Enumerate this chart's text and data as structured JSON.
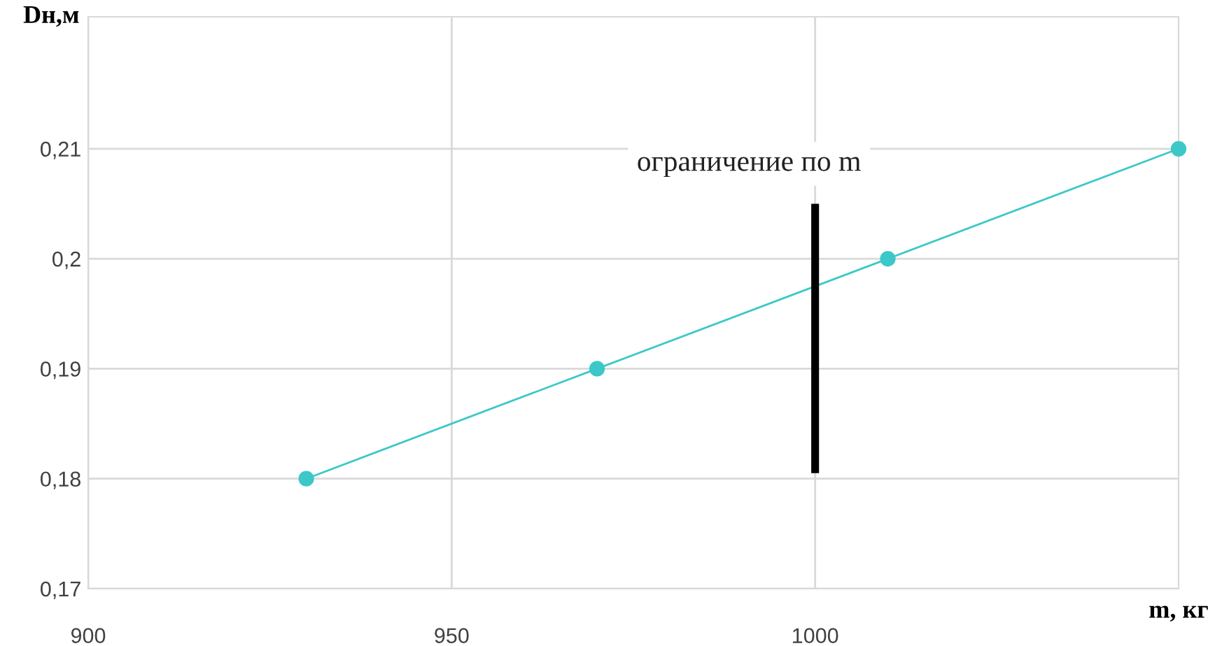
{
  "chart_data": {
    "type": "line",
    "xlabel": "m, кг",
    "ylabel": "Dн,м",
    "x": [
      930,
      970,
      1010,
      1050
    ],
    "series": [
      {
        "color": "#3cc8c8",
        "values": [
          0.18,
          0.19,
          0.2,
          0.21
        ],
        "marker": "circle"
      },
      {
        "type": "line",
        "color": "#000000",
        "x": [
          1000,
          1000
        ],
        "values": [
          0.1805,
          0.205
        ],
        "marker": "none"
      }
    ],
    "annotations": [
      "ограничение по m"
    ],
    "xlim": [
      900,
      1050
    ],
    "ylim": [
      0.17,
      0.222
    ],
    "xticks": [
      900,
      950,
      1000
    ],
    "yticks": [
      {
        "value": 0.17,
        "label": "0,17"
      },
      {
        "value": 0.18,
        "label": "0,18"
      },
      {
        "value": 0.19,
        "label": "0,19"
      },
      {
        "value": 0.2,
        "label": "0,2"
      },
      {
        "value": 0.21,
        "label": "0,21"
      }
    ],
    "grid": true
  }
}
